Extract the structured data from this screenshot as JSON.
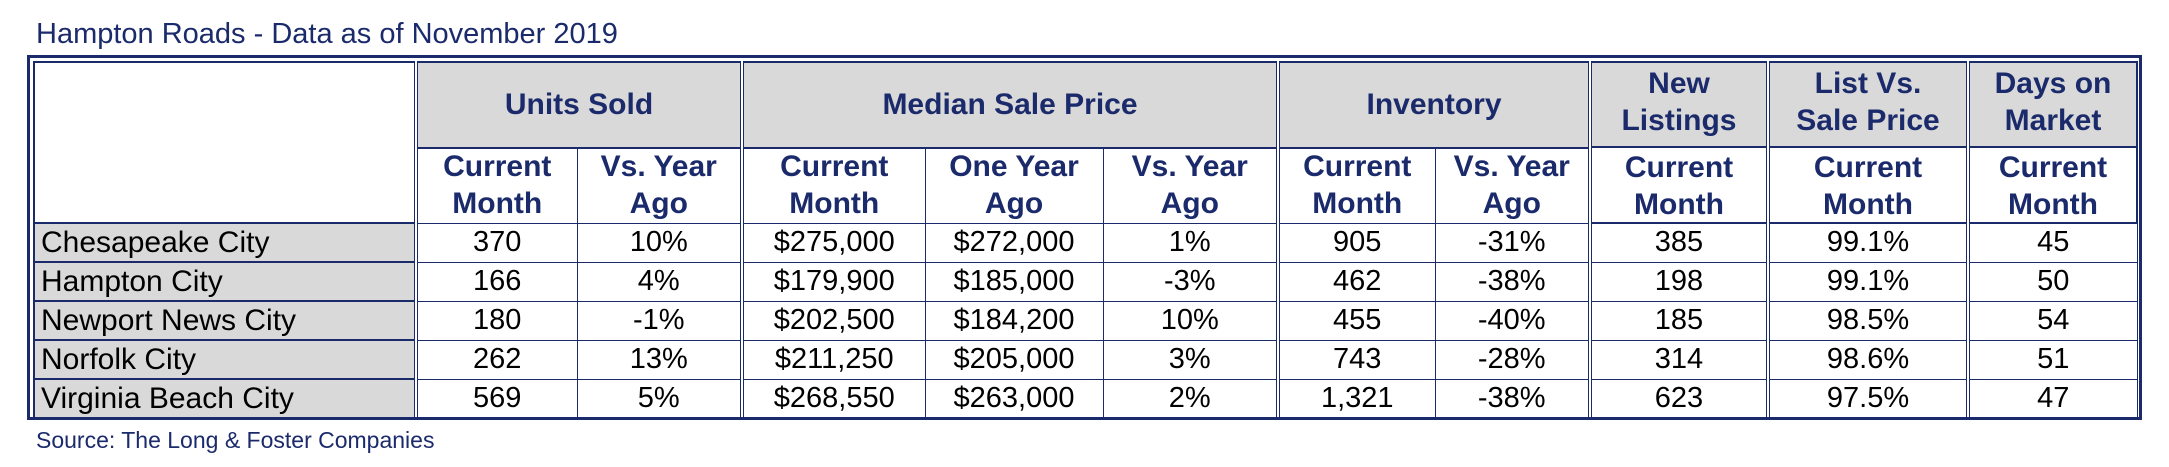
{
  "title": "Hampton Roads - Data as of November 2019",
  "source": "Source: The Long & Foster Companies",
  "groups": {
    "units_sold": "Units Sold",
    "median_sale_price": "Median Sale Price",
    "inventory": "Inventory",
    "new_listings": [
      "New",
      "Listings"
    ],
    "list_vs_sale": [
      "List Vs.",
      "Sale Price"
    ],
    "days_on_market": [
      "Days on",
      "Market"
    ]
  },
  "subheaders": {
    "current_month": [
      "Current",
      "Month"
    ],
    "vs_year_ago": [
      "Vs. Year",
      "Ago"
    ],
    "one_year_ago": [
      "One Year",
      "Ago"
    ]
  },
  "rows": [
    {
      "city": "Chesapeake City",
      "units_current": "370",
      "units_vs": "10%",
      "price_current": "$275,000",
      "price_year_ago": "$272,000",
      "price_vs": "1%",
      "inv_current": "905",
      "inv_vs": "-31%",
      "new_listings": "385",
      "list_vs_sale": "99.1%",
      "dom": "45"
    },
    {
      "city": "Hampton City",
      "units_current": "166",
      "units_vs": "4%",
      "price_current": "$179,900",
      "price_year_ago": "$185,000",
      "price_vs": "-3%",
      "inv_current": "462",
      "inv_vs": "-38%",
      "new_listings": "198",
      "list_vs_sale": "99.1%",
      "dom": "50"
    },
    {
      "city": "Newport News City",
      "units_current": "180",
      "units_vs": "-1%",
      "price_current": "$202,500",
      "price_year_ago": "$184,200",
      "price_vs": "10%",
      "inv_current": "455",
      "inv_vs": "-40%",
      "new_listings": "185",
      "list_vs_sale": "98.5%",
      "dom": "54"
    },
    {
      "city": "Norfolk City",
      "units_current": "262",
      "units_vs": "13%",
      "price_current": "$211,250",
      "price_year_ago": "$205,000",
      "price_vs": "3%",
      "inv_current": "743",
      "inv_vs": "-28%",
      "new_listings": "314",
      "list_vs_sale": "98.6%",
      "dom": "51"
    },
    {
      "city": "Virginia Beach City",
      "units_current": "569",
      "units_vs": "5%",
      "price_current": "$268,550",
      "price_year_ago": "$263,000",
      "price_vs": "2%",
      "inv_current": "1,321",
      "inv_vs": "-38%",
      "new_listings": "623",
      "list_vs_sale": "97.5%",
      "dom": "47"
    }
  ],
  "colors": {
    "navy": "#1b2a6b",
    "header_fill": "#d9d9d9",
    "city_fill": "#d9d9d9"
  }
}
